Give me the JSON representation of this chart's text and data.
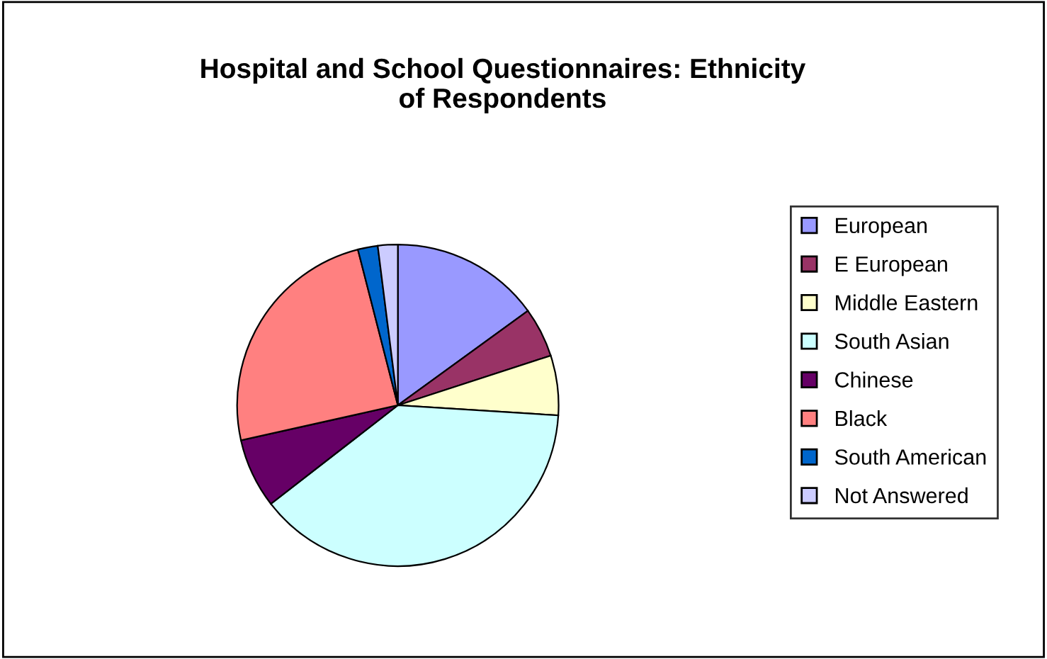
{
  "chart_data": {
    "type": "pie",
    "title": "Hospital and School Questionnaires: Ethnicity\nof Respondents",
    "categories": [
      "European",
      "E European",
      "Middle Eastern",
      "South Asian",
      "Chinese",
      "Black",
      "South American",
      "Not Answered"
    ],
    "values": [
      15,
      5,
      6,
      38.5,
      7,
      24.5,
      2,
      2
    ],
    "colors": [
      "#9999ff",
      "#993366",
      "#ffffcc",
      "#ccffff",
      "#660066",
      "#ff8080",
      "#0066cc",
      "#ccccff"
    ],
    "legend": "right"
  }
}
